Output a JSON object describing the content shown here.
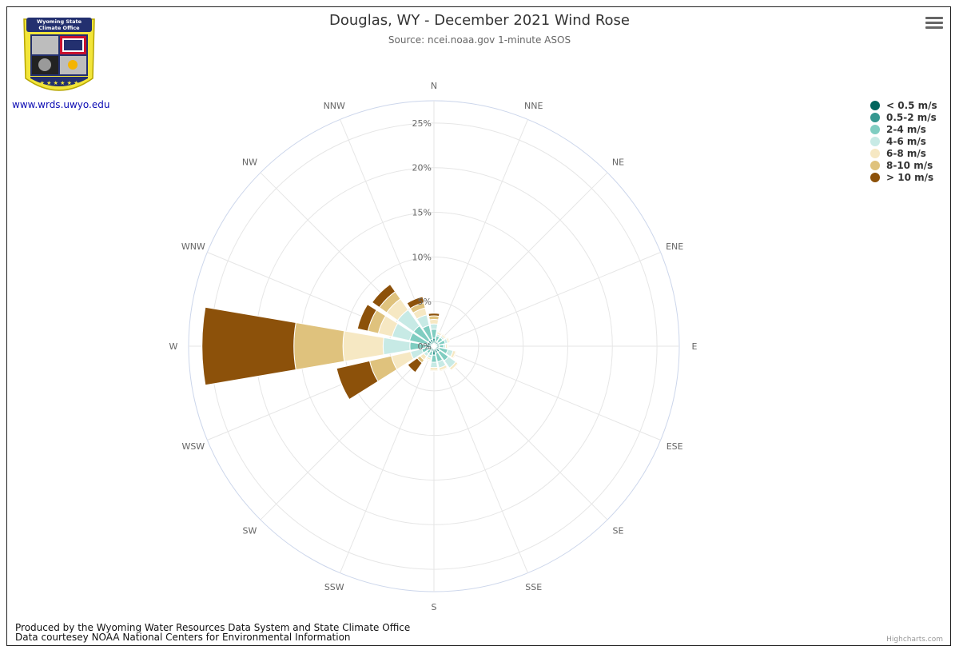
{
  "title": "Douglas, WY - December 2021 Wind Rose",
  "subtitle": "Source: ncei.noaa.gov 1-minute ASOS",
  "site_link": "www.wrds.uwyo.edu",
  "logo": {
    "line1": "Wyoming State",
    "line2": "Climate Office"
  },
  "footer": {
    "line1": "Produced by the Wyoming Water Resources Data System and State Climate Office",
    "line2": "Data courtesey NOAA National Centers for Environmental Information"
  },
  "credits": "Highcharts.com",
  "menu_icon": "hamburger-icon",
  "chart_data": {
    "type": "wind-rose",
    "directions": [
      "N",
      "NNE",
      "NE",
      "ENE",
      "E",
      "ESE",
      "SE",
      "SSE",
      "S",
      "SSW",
      "SW",
      "WSW",
      "W",
      "WNW",
      "NW",
      "NNW"
    ],
    "radial_ticks": [
      "0%",
      "5%",
      "10%",
      "15%",
      "20%",
      "25%"
    ],
    "rmax": 27.5,
    "legend_position": "top-right",
    "series": [
      {
        "name": "< 0.5 m/s",
        "color": "#01665e",
        "values": [
          0.3,
          0.2,
          0.2,
          0.2,
          0.2,
          0.2,
          0.2,
          0.2,
          0.3,
          0.2,
          0.2,
          0.2,
          0.3,
          0.2,
          0.2,
          0.2
        ]
      },
      {
        "name": "0.5-2 m/s",
        "color": "#35978f",
        "values": [
          0.6,
          0.4,
          0.4,
          0.4,
          0.4,
          0.4,
          0.6,
          0.6,
          0.7,
          0.4,
          0.4,
          0.4,
          0.6,
          0.6,
          0.6,
          0.6
        ]
      },
      {
        "name": "2-4 m/s",
        "color": "#80cdc1",
        "values": [
          1.0,
          0.6,
          0.6,
          0.7,
          0.5,
          1.0,
          1.2,
          1.0,
          0.8,
          0.5,
          0.4,
          0.8,
          1.8,
          2.0,
          2.0,
          1.6
        ]
      },
      {
        "name": "4-6 m/s",
        "color": "#c7eae5",
        "values": [
          0.6,
          0.2,
          0.2,
          0.3,
          0.2,
          0.6,
          1.0,
          0.7,
          0.6,
          0.3,
          0.4,
          1.3,
          3.0,
          2.0,
          2.2,
          1.2
        ]
      },
      {
        "name": "6-8 m/s",
        "color": "#f6e8c3",
        "values": [
          0.5,
          0.2,
          0.2,
          0.2,
          0.2,
          0.3,
          0.3,
          0.3,
          0.3,
          0.2,
          0.5,
          2.2,
          4.5,
          1.6,
          1.5,
          0.8
        ]
      },
      {
        "name": "8-10 m/s",
        "color": "#dfc27d",
        "values": [
          0.4,
          0.1,
          0.1,
          0.1,
          0.1,
          0.1,
          0.1,
          0.1,
          0.1,
          0.1,
          0.4,
          2.5,
          5.5,
          1.2,
          1.0,
          0.6
        ]
      },
      {
        "name": "> 10 m/s",
        "color": "#8c510a",
        "values": [
          0.3,
          0,
          0,
          0,
          0,
          0,
          0,
          0,
          0,
          0,
          1.3,
          3.8,
          10.3,
          1.2,
          1.0,
          0.7
        ]
      }
    ]
  }
}
